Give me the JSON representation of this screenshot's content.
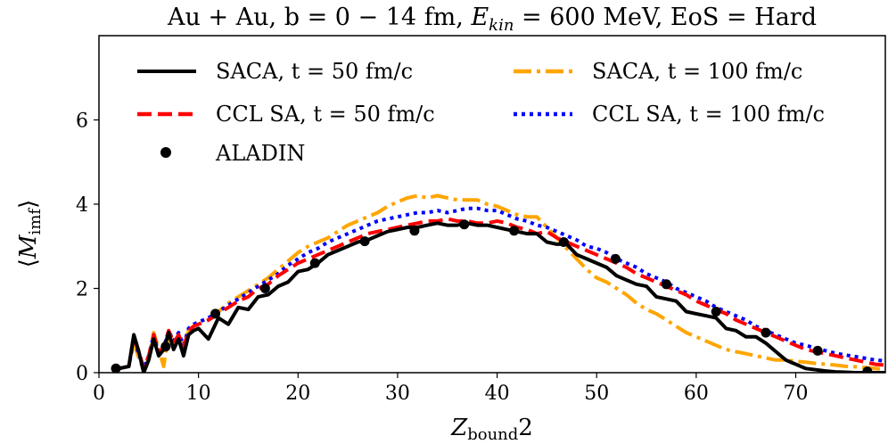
{
  "chart_data": {
    "type": "line",
    "title": "Au + Au, b = 0 − 14 fm, E_kin = 600 MeV, EoS = Hard",
    "title_parts": {
      "prefix": "Au + Au, b = 0 − 14 fm, ",
      "var_main": "E",
      "var_sub": "kin",
      "suffix": " = 600 MeV, EoS = Hard"
    },
    "xlabel": "Z_bound2",
    "xlabel_parts": {
      "main": "Z",
      "sub": "bound",
      "suffix": "2"
    },
    "ylabel": "⟨M_imf⟩",
    "ylabel_parts": {
      "open": "⟨",
      "main": "M",
      "sub": "imf",
      "close": "⟩"
    },
    "xlim": [
      0,
      79
    ],
    "ylim": [
      0,
      8
    ],
    "xticks": [
      0,
      10,
      20,
      30,
      40,
      50,
      60,
      70
    ],
    "yticks": [
      0,
      2,
      4,
      6
    ],
    "grid": false,
    "legend_position": "upper, two columns",
    "series": [
      {
        "name": "SACA, t = 50 fm/c",
        "style": "solid",
        "color": "#000000",
        "x": [
          2,
          3,
          3.5,
          4,
          4.5,
          5,
          5.5,
          6,
          6.5,
          7,
          7.5,
          8,
          8.5,
          9,
          9.5,
          10,
          11,
          12,
          13,
          14,
          15,
          16,
          17,
          18,
          19,
          20,
          21,
          22,
          23,
          24,
          25,
          26,
          27,
          28,
          29,
          30,
          31,
          32,
          33,
          34,
          35,
          36,
          37,
          38,
          39,
          40,
          41,
          42,
          43,
          44,
          45,
          46,
          47,
          48,
          49,
          50,
          51,
          52,
          53,
          54,
          55,
          56,
          57,
          58,
          59,
          60,
          61,
          62,
          63,
          64,
          65,
          66,
          67,
          68,
          69,
          70,
          71,
          72,
          73,
          74,
          75,
          76,
          77,
          78,
          79
        ],
        "y": [
          0.1,
          0.15,
          0.9,
          0.5,
          0.0,
          0.3,
          0.8,
          0.4,
          0.55,
          0.95,
          0.55,
          0.8,
          0.4,
          0.9,
          1.0,
          1.05,
          0.8,
          1.3,
          1.15,
          1.55,
          1.5,
          1.8,
          1.85,
          2.05,
          2.15,
          2.4,
          2.45,
          2.6,
          2.8,
          2.9,
          3.0,
          3.1,
          3.15,
          3.25,
          3.35,
          3.4,
          3.45,
          3.45,
          3.5,
          3.55,
          3.5,
          3.5,
          3.55,
          3.5,
          3.5,
          3.45,
          3.4,
          3.35,
          3.3,
          3.3,
          3.1,
          3.05,
          3.05,
          2.8,
          2.7,
          2.6,
          2.5,
          2.3,
          2.2,
          2.1,
          2.05,
          1.8,
          1.75,
          1.7,
          1.45,
          1.4,
          1.35,
          1.3,
          1.05,
          1.0,
          0.85,
          0.85,
          0.7,
          0.5,
          0.3,
          0.2,
          0.1,
          0.07,
          0.04,
          0.02,
          0.01,
          0.0,
          0.0,
          0.0,
          0.0
        ]
      },
      {
        "name": "CCL SA, t = 50 fm/c",
        "style": "dashed",
        "color": "#ff0000",
        "x": [
          2,
          3,
          3.5,
          4,
          4.5,
          5,
          5.5,
          6,
          6.5,
          7,
          7.5,
          8,
          8.5,
          9,
          9.5,
          10,
          11,
          12,
          13,
          14,
          15,
          16,
          17,
          18,
          19,
          20,
          21,
          22,
          23,
          24,
          25,
          26,
          27,
          28,
          29,
          30,
          31,
          32,
          33,
          34,
          35,
          36,
          37,
          38,
          39,
          40,
          41,
          42,
          43,
          44,
          45,
          46,
          47,
          48,
          49,
          50,
          51,
          52,
          53,
          54,
          55,
          56,
          57,
          58,
          59,
          60,
          61,
          62,
          63,
          64,
          65,
          66,
          67,
          68,
          69,
          70,
          71,
          72,
          73,
          74,
          75,
          76,
          77,
          78,
          79
        ],
        "y": [
          0.1,
          0.15,
          0.85,
          0.5,
          0.1,
          0.4,
          0.9,
          0.5,
          0.6,
          1.0,
          0.7,
          0.9,
          0.6,
          1.0,
          1.1,
          1.15,
          1.25,
          1.4,
          1.55,
          1.7,
          1.8,
          2.0,
          2.1,
          2.3,
          2.45,
          2.6,
          2.7,
          2.8,
          2.9,
          3.0,
          3.1,
          3.2,
          3.3,
          3.35,
          3.4,
          3.45,
          3.5,
          3.55,
          3.6,
          3.6,
          3.65,
          3.6,
          3.6,
          3.55,
          3.55,
          3.6,
          3.55,
          3.45,
          3.4,
          3.3,
          3.35,
          3.2,
          3.1,
          3.0,
          2.9,
          2.8,
          2.7,
          2.6,
          2.5,
          2.35,
          2.25,
          2.15,
          2.05,
          1.95,
          1.85,
          1.7,
          1.6,
          1.5,
          1.4,
          1.25,
          1.15,
          1.05,
          0.95,
          0.85,
          0.75,
          0.65,
          0.55,
          0.5,
          0.45,
          0.4,
          0.35,
          0.3,
          0.25,
          0.2,
          0.18
        ]
      },
      {
        "name": "SACA, t = 100 fm/c",
        "style": "dashdot",
        "color": "#ffa500",
        "x": [
          2,
          3,
          3.5,
          4,
          4.5,
          5,
          5.5,
          6,
          6.5,
          7,
          7.5,
          8,
          8.5,
          9,
          9.5,
          10,
          11,
          12,
          13,
          14,
          15,
          16,
          17,
          18,
          19,
          20,
          21,
          22,
          23,
          24,
          25,
          26,
          27,
          28,
          29,
          30,
          31,
          32,
          33,
          34,
          35,
          36,
          37,
          38,
          39,
          40,
          41,
          42,
          43,
          44,
          45,
          46,
          47,
          48,
          49,
          50,
          51,
          52,
          53,
          54,
          55,
          56,
          57,
          58,
          59,
          60,
          61,
          62,
          63,
          64,
          65,
          66,
          67,
          68,
          69,
          70,
          71,
          72,
          73,
          74,
          75,
          76,
          77,
          78,
          79
        ],
        "y": [
          0.1,
          0.15,
          0.7,
          0.35,
          0.05,
          0.35,
          0.95,
          0.55,
          0.15,
          0.95,
          0.65,
          0.9,
          0.55,
          1.0,
          1.1,
          1.2,
          1.3,
          1.45,
          1.65,
          1.8,
          1.95,
          2.1,
          2.25,
          2.45,
          2.65,
          2.85,
          3.0,
          3.1,
          3.2,
          3.35,
          3.5,
          3.6,
          3.7,
          3.8,
          3.95,
          4.05,
          4.15,
          4.2,
          4.15,
          4.2,
          4.15,
          4.1,
          4.1,
          4.1,
          4.0,
          3.95,
          3.85,
          3.75,
          3.7,
          3.7,
          3.45,
          3.2,
          2.95,
          2.7,
          2.45,
          2.25,
          2.15,
          2.0,
          1.85,
          1.65,
          1.5,
          1.4,
          1.25,
          1.1,
          0.95,
          0.85,
          0.75,
          0.65,
          0.55,
          0.5,
          0.45,
          0.4,
          0.35,
          0.3,
          0.3,
          0.27,
          0.25,
          0.22,
          0.2,
          0.18,
          0.15,
          0.14,
          0.12,
          0.1,
          0.08
        ]
      },
      {
        "name": "CCL SA, t = 100 fm/c",
        "style": "dotted",
        "color": "#0000ff",
        "x": [
          2,
          3,
          3.5,
          4,
          4.5,
          5,
          5.5,
          6,
          6.5,
          7,
          7.5,
          8,
          8.5,
          9,
          9.5,
          10,
          11,
          12,
          13,
          14,
          15,
          16,
          17,
          18,
          19,
          20,
          21,
          22,
          23,
          24,
          25,
          26,
          27,
          28,
          29,
          30,
          31,
          32,
          33,
          34,
          35,
          36,
          37,
          38,
          39,
          40,
          41,
          42,
          43,
          44,
          45,
          46,
          47,
          48,
          49,
          50,
          51,
          52,
          53,
          54,
          55,
          56,
          57,
          58,
          59,
          60,
          61,
          62,
          63,
          64,
          65,
          66,
          67,
          68,
          69,
          70,
          71,
          72,
          73,
          74,
          75,
          76,
          77,
          78,
          79
        ],
        "y": [
          0.1,
          0.15,
          0.8,
          0.45,
          0.1,
          0.4,
          0.9,
          0.45,
          0.6,
          1.0,
          0.75,
          0.95,
          0.65,
          1.05,
          1.15,
          1.2,
          1.3,
          1.45,
          1.6,
          1.75,
          1.9,
          2.05,
          2.2,
          2.35,
          2.55,
          2.7,
          2.85,
          2.95,
          3.1,
          3.2,
          3.3,
          3.4,
          3.5,
          3.6,
          3.65,
          3.7,
          3.75,
          3.8,
          3.8,
          3.85,
          3.8,
          3.85,
          3.9,
          3.9,
          3.85,
          3.85,
          3.75,
          3.65,
          3.6,
          3.5,
          3.45,
          3.35,
          3.25,
          3.15,
          3.0,
          2.95,
          2.85,
          2.7,
          2.6,
          2.5,
          2.35,
          2.25,
          2.15,
          2.0,
          1.9,
          1.8,
          1.7,
          1.55,
          1.45,
          1.35,
          1.25,
          1.1,
          1.0,
          0.9,
          0.8,
          0.7,
          0.65,
          0.58,
          0.52,
          0.46,
          0.42,
          0.38,
          0.34,
          0.3,
          0.28
        ]
      },
      {
        "name": "ALADIN",
        "style": "markers",
        "color": "#000000",
        "x": [
          1.7,
          6.7,
          11.7,
          16.7,
          21.7,
          26.7,
          31.7,
          36.7,
          41.7,
          46.7,
          51.9,
          57.0,
          62.0,
          67.0,
          72.2,
          77.2
        ],
        "y": [
          0.1,
          0.62,
          1.4,
          2.0,
          2.6,
          3.12,
          3.37,
          3.52,
          3.37,
          3.1,
          2.7,
          2.1,
          1.45,
          0.95,
          0.52,
          0.03
        ]
      }
    ]
  }
}
